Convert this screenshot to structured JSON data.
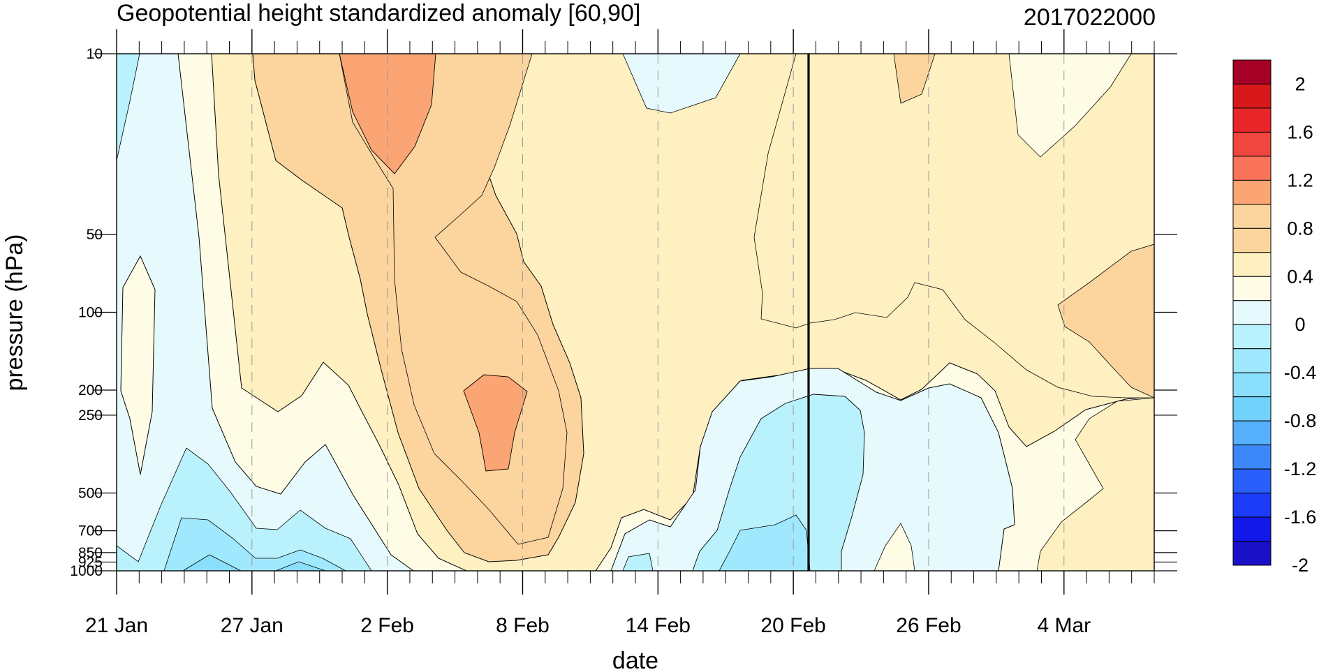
{
  "chart_data": {
    "type": "heatmap",
    "title": "Geopotential height standardized anomaly [60,90]",
    "right_title": "2017022000",
    "xlabel": "date",
    "ylabel": "pressure (hPa)",
    "x_ticks": [
      "21 Jan",
      "27 Jan",
      "2 Feb",
      "8 Feb",
      "14 Feb",
      "20 Feb",
      "26 Feb",
      "4 Mar"
    ],
    "x_range": [
      "2017-01-21",
      "2017-03-08"
    ],
    "y_ticks": [
      "10",
      "50",
      "100",
      "200",
      "250",
      "500",
      "700",
      "850",
      "925",
      "1000"
    ],
    "y_range_hPa": [
      1000,
      10
    ],
    "y_scale": "log",
    "init_date_marker": "20 Feb",
    "colorbar": {
      "labels": [
        "2",
        "1.6",
        "1.2",
        "0.8",
        "0.4",
        "0",
        "-0.4",
        "-0.8",
        "-1.2",
        "-1.6",
        "-2"
      ],
      "levels": [
        -2.2,
        -2,
        -1.8,
        -1.6,
        -1.4,
        -1.2,
        -1,
        -0.8,
        -0.6,
        -0.4,
        -0.2,
        0,
        0.2,
        0.4,
        0.6,
        0.8,
        1,
        1.2,
        1.4,
        1.6,
        1.8,
        2,
        2.2
      ],
      "colors_top_to_bottom": [
        "#a50026",
        "#d7191c",
        "#e8262a",
        "#f04640",
        "#f9735a",
        "#fba574",
        "#fcd49e",
        "#fcd49e",
        "#fef0c0",
        "#fffce6",
        "#e6fafe",
        "#b9f2fd",
        "#a0e8fd",
        "#8adffd",
        "#71d2fc",
        "#56b0fc",
        "#3c88fb",
        "#2a5ffb",
        "#1b3bf8",
        "#1218e8",
        "#1a10c8"
      ]
    },
    "grid": "dashed vertical lines at date ticks"
  }
}
